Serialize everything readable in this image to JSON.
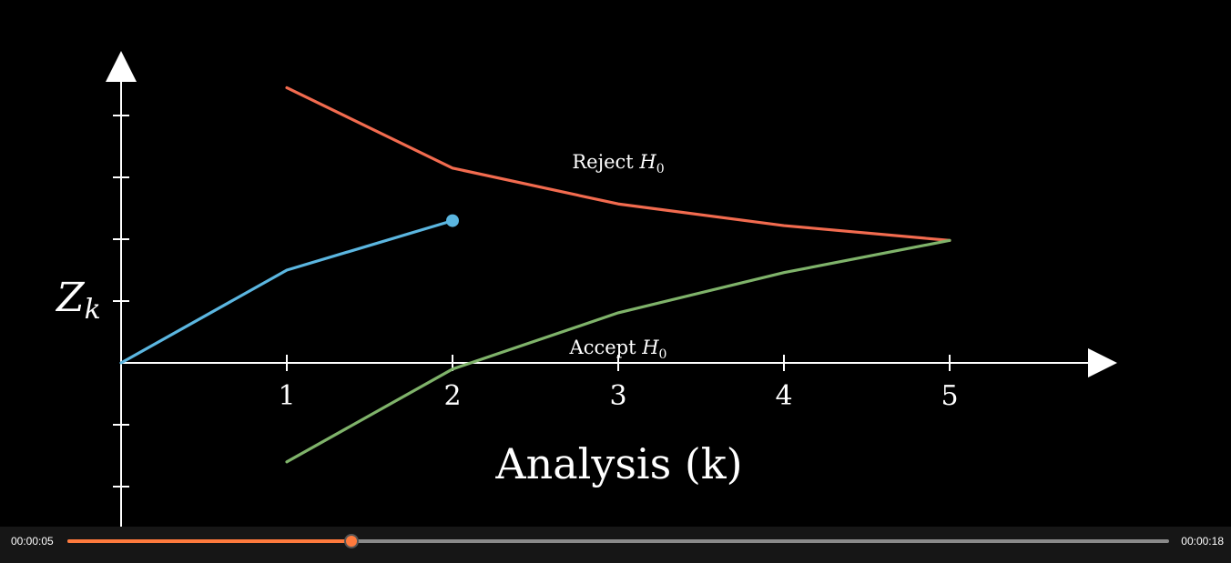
{
  "chart_data": {
    "type": "line",
    "title": "",
    "xlabel": "Analysis (k)",
    "ylabel_var": "Z",
    "ylabel_sub": "k",
    "x_ticks": [
      "1",
      "2",
      "3",
      "4",
      "5"
    ],
    "xlim": [
      0,
      6
    ],
    "ylim": [
      -3,
      5
    ],
    "y_ticks": [
      -2,
      -1,
      1,
      2,
      3,
      4
    ],
    "grid": false,
    "series": [
      {
        "name": "",
        "role": "upper-boundary",
        "color": "#f26b4f",
        "x": [
          1,
          2,
          3,
          4,
          5
        ],
        "y": [
          4.45,
          3.15,
          2.57,
          2.22,
          1.98
        ]
      },
      {
        "name": "",
        "role": "lower-boundary",
        "color": "#7fb36a",
        "x": [
          1,
          2,
          3,
          4,
          5
        ],
        "y": [
          -1.6,
          -0.1,
          0.81,
          1.46,
          1.98
        ]
      },
      {
        "name": "",
        "role": "observed-path",
        "color": "#5bb6e0",
        "x": [
          0,
          1,
          2
        ],
        "y": [
          0,
          1.5,
          2.3
        ],
        "end_marker": true
      }
    ],
    "annotations": [
      {
        "id": "reject",
        "prefix": "Reject ",
        "var": "H",
        "sub": "0",
        "x": 3,
        "y": 3.25
      },
      {
        "id": "accept",
        "prefix": "Accept ",
        "var": "H",
        "sub": "0",
        "x": 3,
        "y": 0.25
      }
    ]
  },
  "player": {
    "current_time": "00:00:05",
    "total_time": "00:00:18",
    "progress": 0.258,
    "accent_color": "#ff7a3d"
  }
}
